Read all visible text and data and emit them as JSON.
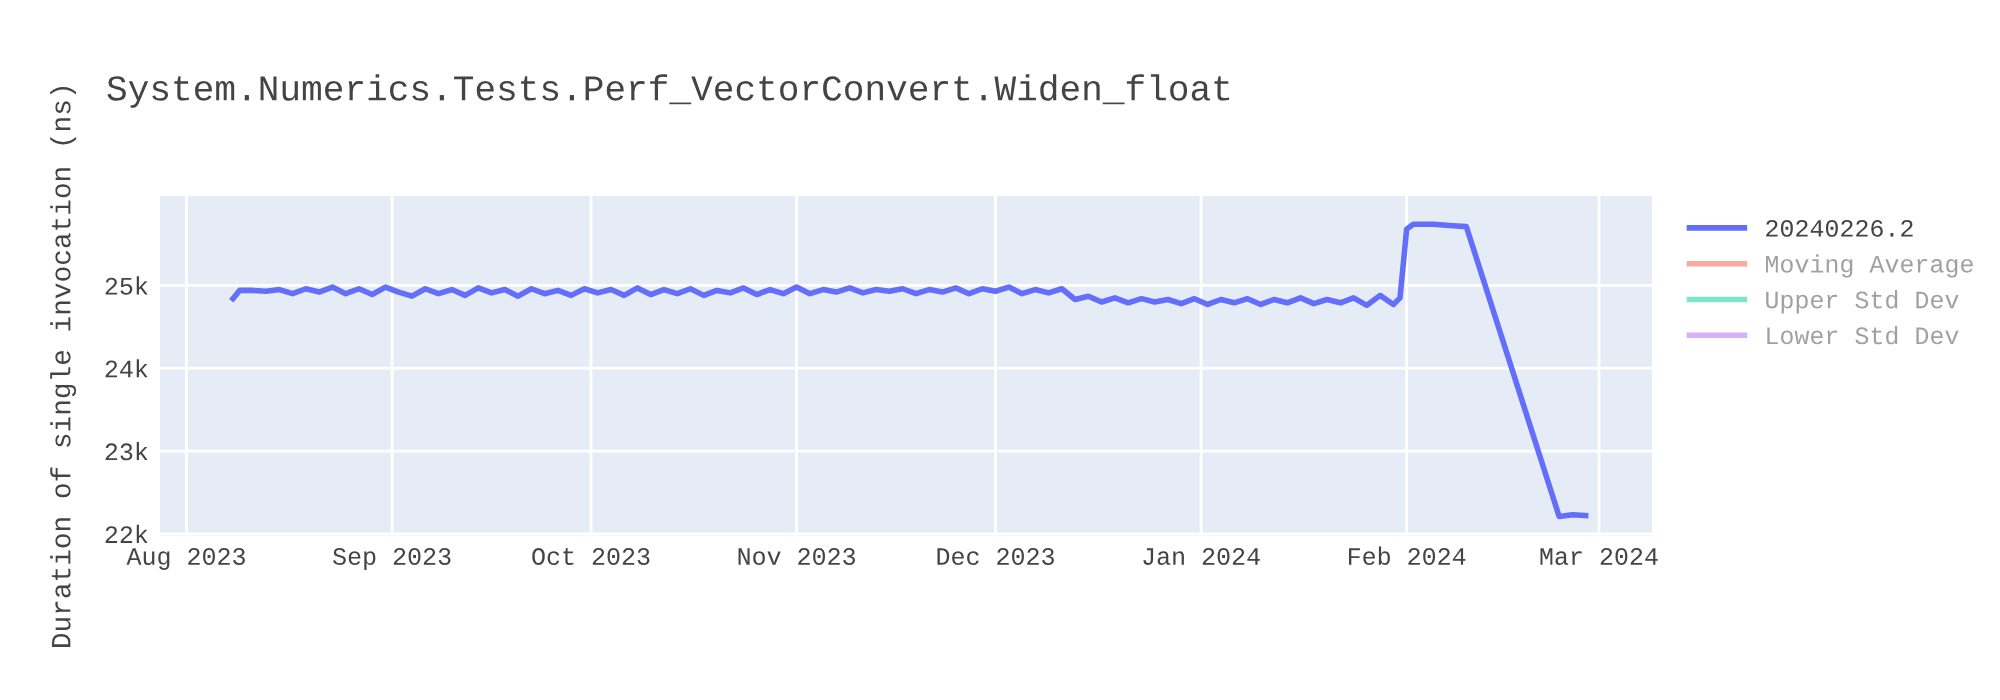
{
  "chart_data": {
    "type": "line",
    "title": "System.Numerics.Tests.Perf_VectorConvert.Widen_float",
    "ylabel": "Duration of single invocation (ns)",
    "xlim": [
      "2023-07-28",
      "2024-03-09"
    ],
    "xticks": [
      {
        "value": "2023-08-01",
        "label": "Aug 2023"
      },
      {
        "value": "2023-09-01",
        "label": "Sep 2023"
      },
      {
        "value": "2023-10-01",
        "label": "Oct 2023"
      },
      {
        "value": "2023-11-01",
        "label": "Nov 2023"
      },
      {
        "value": "2023-12-01",
        "label": "Dec 2023"
      },
      {
        "value": "2024-01-01",
        "label": "Jan 2024"
      },
      {
        "value": "2024-02-01",
        "label": "Feb 2024"
      },
      {
        "value": "2024-03-01",
        "label": "Mar 2024"
      }
    ],
    "ylim": [
      21980,
      26080
    ],
    "yticks": [
      {
        "value": 22000,
        "label": "22k"
      },
      {
        "value": 23000,
        "label": "23k"
      },
      {
        "value": 24000,
        "label": "24k"
      },
      {
        "value": 25000,
        "label": "25k"
      }
    ],
    "grid": true,
    "legend": "top right",
    "marker": "none",
    "line_style": "solid",
    "series": [
      {
        "name": "20240226.2",
        "color": "#636efa",
        "x": [
          "2023-08-08",
          "2023-08-09",
          "2023-08-11",
          "2023-08-13",
          "2023-08-15",
          "2023-08-17",
          "2023-08-19",
          "2023-08-21",
          "2023-08-23",
          "2023-08-25",
          "2023-08-27",
          "2023-08-29",
          "2023-08-31",
          "2023-09-02",
          "2023-09-04",
          "2023-09-06",
          "2023-09-08",
          "2023-09-10",
          "2023-09-12",
          "2023-09-14",
          "2023-09-16",
          "2023-09-18",
          "2023-09-20",
          "2023-09-22",
          "2023-09-24",
          "2023-09-26",
          "2023-09-28",
          "2023-09-30",
          "2023-10-02",
          "2023-10-04",
          "2023-10-06",
          "2023-10-08",
          "2023-10-10",
          "2023-10-12",
          "2023-10-14",
          "2023-10-16",
          "2023-10-18",
          "2023-10-20",
          "2023-10-22",
          "2023-10-24",
          "2023-10-26",
          "2023-10-28",
          "2023-10-30",
          "2023-11-01",
          "2023-11-03",
          "2023-11-05",
          "2023-11-07",
          "2023-11-09",
          "2023-11-11",
          "2023-11-13",
          "2023-11-15",
          "2023-11-17",
          "2023-11-19",
          "2023-11-21",
          "2023-11-23",
          "2023-11-25",
          "2023-11-27",
          "2023-11-29",
          "2023-12-01",
          "2023-12-03",
          "2023-12-05",
          "2023-12-07",
          "2023-12-09",
          "2023-12-11",
          "2023-12-13",
          "2023-12-15",
          "2023-12-17",
          "2023-12-19",
          "2023-12-21",
          "2023-12-23",
          "2023-12-25",
          "2023-12-27",
          "2023-12-29",
          "2023-12-31",
          "2024-01-02",
          "2024-01-04",
          "2024-01-06",
          "2024-01-08",
          "2024-01-10",
          "2024-01-12",
          "2024-01-14",
          "2024-01-16",
          "2024-01-18",
          "2024-01-20",
          "2024-01-22",
          "2024-01-24",
          "2024-01-26",
          "2024-01-28",
          "2024-01-30",
          "2024-01-31",
          "2024-02-01",
          "2024-02-02",
          "2024-02-05",
          "2024-02-08",
          "2024-02-10",
          "2024-02-24",
          "2024-02-26",
          "2024-02-28"
        ],
        "values": [
          24840,
          24940,
          24940,
          24930,
          24950,
          24900,
          24960,
          24920,
          24980,
          24900,
          24960,
          24890,
          24980,
          24920,
          24870,
          24960,
          24900,
          24950,
          24880,
          24970,
          24910,
          24950,
          24870,
          24960,
          24900,
          24940,
          24880,
          24960,
          24910,
          24950,
          24880,
          24970,
          24890,
          24950,
          24900,
          24960,
          24880,
          24940,
          24910,
          24970,
          24890,
          24950,
          24900,
          24980,
          24900,
          24950,
          24920,
          24970,
          24910,
          24950,
          24930,
          24960,
          24900,
          24950,
          24920,
          24970,
          24900,
          24960,
          24930,
          24980,
          24900,
          24950,
          24910,
          24960,
          24830,
          24870,
          24800,
          24850,
          24790,
          24840,
          24800,
          24830,
          24780,
          24840,
          24770,
          24830,
          24790,
          24840,
          24770,
          24830,
          24790,
          24850,
          24780,
          24830,
          24790,
          24850,
          24760,
          24880,
          24770,
          24850,
          25680,
          25740,
          25740,
          25720,
          25710,
          22210,
          22230,
          22220
        ]
      },
      {
        "name": "Moving Average",
        "color": "#ef553b"
      },
      {
        "name": "Upper Std Dev",
        "color": "#00cc96"
      },
      {
        "name": "Lower Std Dev",
        "color": "#ab63fa"
      }
    ]
  }
}
